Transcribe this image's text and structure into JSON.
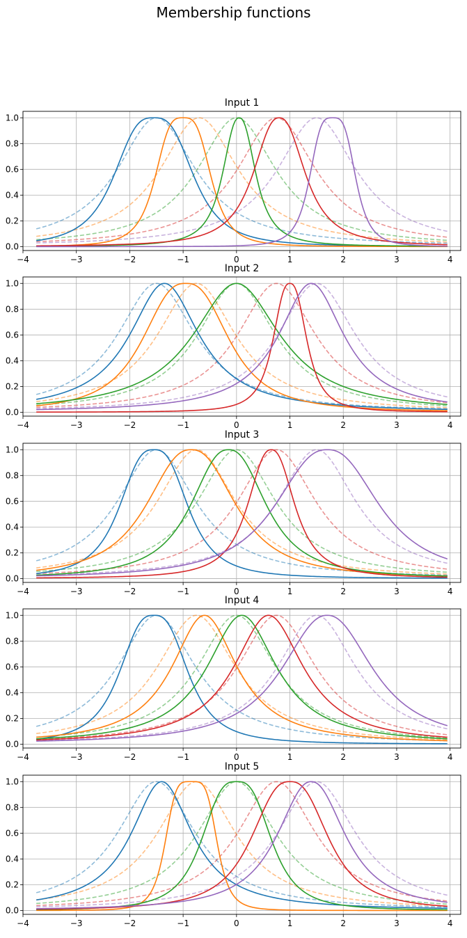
{
  "figure": {
    "suptitle": "Membership functions"
  },
  "style": {
    "colors": [
      "#1f77b4",
      "#ff7f0e",
      "#2ca02c",
      "#d62728",
      "#9467bd"
    ],
    "grid": true,
    "initial_line_style": "dashed, semi-transparent",
    "trained_line_style": "solid"
  },
  "chart_data": [
    {
      "type": "line",
      "title": "Input 1",
      "xlabel": "",
      "ylabel": "",
      "xlim": [
        -4.0,
        4.2
      ],
      "ylim": [
        -0.03,
        1.05
      ],
      "xticks": [
        -4,
        -3,
        -2,
        -1,
        0,
        1,
        2,
        3,
        4
      ],
      "yticks": [
        0.0,
        0.2,
        0.4,
        0.6,
        0.8,
        1.0
      ],
      "x_range": [
        -3.75,
        3.95
      ],
      "mf_shape": "generalized bell",
      "initial": [
        {
          "center": -1.5,
          "width": 0.9,
          "slope": 1
        },
        {
          "center": -0.7,
          "width": 0.9,
          "slope": 1
        },
        {
          "center": 0.0,
          "width": 0.9,
          "slope": 1
        },
        {
          "center": 0.75,
          "width": 0.9,
          "slope": 1
        },
        {
          "center": 1.5,
          "width": 0.9,
          "slope": 1
        }
      ],
      "trained": [
        {
          "center": -1.55,
          "width": 0.8,
          "slope": 1.5
        },
        {
          "center": -1.0,
          "width": 0.55,
          "slope": 1.7
        },
        {
          "center": 0.05,
          "width": 0.35,
          "slope": 1.2
        },
        {
          "center": 0.8,
          "width": 0.55,
          "slope": 1.2
        },
        {
          "center": 1.8,
          "width": 0.45,
          "slope": 1.8
        }
      ]
    },
    {
      "type": "line",
      "title": "Input 2",
      "xlabel": "",
      "ylabel": "",
      "xlim": [
        -4.0,
        4.2
      ],
      "ylim": [
        -0.03,
        1.05
      ],
      "xticks": [
        -4,
        -3,
        -2,
        -1,
        0,
        1,
        2,
        3,
        4
      ],
      "yticks": [
        0.0,
        0.2,
        0.4,
        0.6,
        0.8,
        1.0
      ],
      "x_range": [
        -3.75,
        3.95
      ],
      "mf_shape": "generalized bell",
      "initial": [
        {
          "center": -1.5,
          "width": 0.9,
          "slope": 1
        },
        {
          "center": -0.75,
          "width": 0.9,
          "slope": 1
        },
        {
          "center": 0.0,
          "width": 0.9,
          "slope": 1
        },
        {
          "center": 0.75,
          "width": 0.9,
          "slope": 1
        },
        {
          "center": 1.5,
          "width": 0.9,
          "slope": 1
        }
      ],
      "trained": [
        {
          "center": -1.35,
          "width": 0.8,
          "slope": 1
        },
        {
          "center": -0.95,
          "width": 0.9,
          "slope": 1.3
        },
        {
          "center": 0.0,
          "width": 1.0,
          "slope": 1
        },
        {
          "center": 1.0,
          "width": 0.35,
          "slope": 1.3
        },
        {
          "center": 1.4,
          "width": 0.75,
          "slope": 1
        }
      ]
    },
    {
      "type": "line",
      "title": "Input 3",
      "xlabel": "",
      "ylabel": "",
      "xlim": [
        -4.0,
        4.2
      ],
      "ylim": [
        -0.03,
        1.05
      ],
      "xticks": [
        -4,
        -3,
        -2,
        -1,
        0,
        1,
        2,
        3,
        4
      ],
      "yticks": [
        0.0,
        0.2,
        0.4,
        0.6,
        0.8,
        1.0
      ],
      "x_range": [
        -3.75,
        3.95
      ],
      "mf_shape": "generalized bell",
      "initial": [
        {
          "center": -1.5,
          "width": 0.9,
          "slope": 1
        },
        {
          "center": -0.75,
          "width": 0.9,
          "slope": 1
        },
        {
          "center": 0.0,
          "width": 0.9,
          "slope": 1
        },
        {
          "center": 0.75,
          "width": 0.9,
          "slope": 1
        },
        {
          "center": 1.5,
          "width": 0.9,
          "slope": 1
        }
      ],
      "trained": [
        {
          "center": -1.55,
          "width": 0.7,
          "slope": 1.4
        },
        {
          "center": -0.85,
          "width": 0.95,
          "slope": 1.2
        },
        {
          "center": -0.15,
          "width": 0.8,
          "slope": 1.2
        },
        {
          "center": 0.65,
          "width": 0.5,
          "slope": 1.2
        },
        {
          "center": 1.7,
          "width": 1.1,
          "slope": 1.2
        }
      ]
    },
    {
      "type": "line",
      "title": "Input 4",
      "xlabel": "",
      "ylabel": "",
      "xlim": [
        -4.0,
        4.2
      ],
      "ylim": [
        -0.03,
        1.05
      ],
      "xticks": [
        -4,
        -3,
        -2,
        -1,
        0,
        1,
        2,
        3,
        4
      ],
      "yticks": [
        0.0,
        0.2,
        0.4,
        0.6,
        0.8,
        1.0
      ],
      "x_range": [
        -3.75,
        3.95
      ],
      "mf_shape": "generalized bell",
      "initial": [
        {
          "center": -1.5,
          "width": 0.9,
          "slope": 1
        },
        {
          "center": -0.75,
          "width": 0.9,
          "slope": 1
        },
        {
          "center": 0.0,
          "width": 0.9,
          "slope": 1
        },
        {
          "center": 0.75,
          "width": 0.9,
          "slope": 1
        },
        {
          "center": 1.5,
          "width": 0.9,
          "slope": 1
        }
      ],
      "trained": [
        {
          "center": -1.55,
          "width": 0.7,
          "slope": 1.4
        },
        {
          "center": -0.6,
          "width": 0.75,
          "slope": 1
        },
        {
          "center": 0.1,
          "width": 0.8,
          "slope": 1
        },
        {
          "center": 0.6,
          "width": 0.8,
          "slope": 1
        },
        {
          "center": 1.7,
          "width": 1.0,
          "slope": 1.1
        }
      ]
    },
    {
      "type": "line",
      "title": "Input 5",
      "xlabel": "",
      "ylabel": "",
      "xlim": [
        -4.0,
        4.2
      ],
      "ylim": [
        -0.03,
        1.05
      ],
      "xticks": [
        -4,
        -3,
        -2,
        -1,
        0,
        1,
        2,
        3,
        4
      ],
      "yticks": [
        0.0,
        0.2,
        0.4,
        0.6,
        0.8,
        1.0
      ],
      "x_range": [
        -3.75,
        3.95
      ],
      "mf_shape": "generalized bell",
      "initial": [
        {
          "center": -1.5,
          "width": 0.9,
          "slope": 1
        },
        {
          "center": -0.75,
          "width": 0.9,
          "slope": 1
        },
        {
          "center": 0.0,
          "width": 0.9,
          "slope": 1
        },
        {
          "center": 0.75,
          "width": 0.9,
          "slope": 1
        },
        {
          "center": 1.5,
          "width": 0.9,
          "slope": 1
        }
      ],
      "trained": [
        {
          "center": -1.4,
          "width": 0.7,
          "slope": 1
        },
        {
          "center": -0.85,
          "width": 0.5,
          "slope": 2.2
        },
        {
          "center": 0.0,
          "width": 0.7,
          "slope": 1.5
        },
        {
          "center": 1.0,
          "width": 0.8,
          "slope": 1.3
        },
        {
          "center": 1.4,
          "width": 0.75,
          "slope": 1.1
        }
      ]
    }
  ]
}
